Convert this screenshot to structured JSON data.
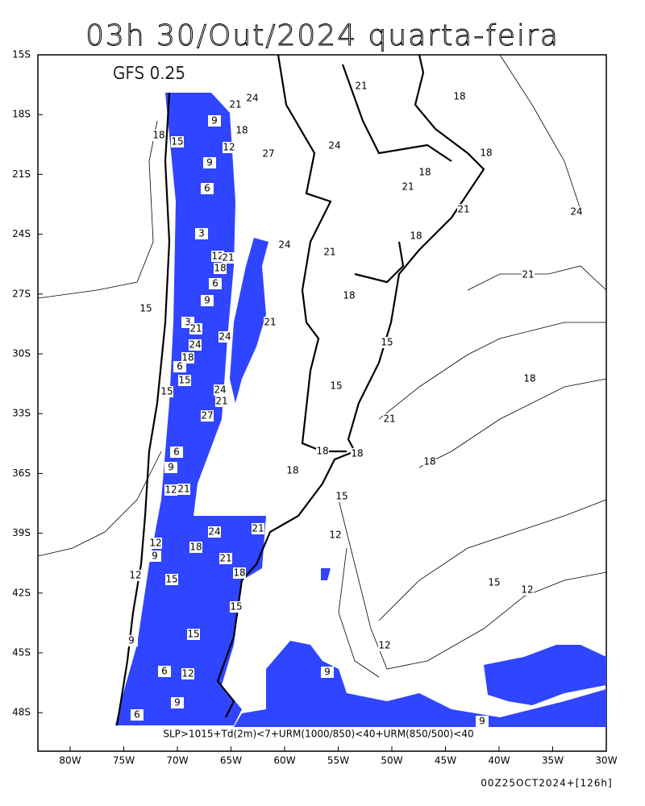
{
  "header": {
    "title": "03h 30/Out/2024 quarta-feira",
    "model": "GFS 0.25"
  },
  "axes": {
    "lat_labels": [
      "15S",
      "18S",
      "21S",
      "24S",
      "27S",
      "30S",
      "33S",
      "36S",
      "39S",
      "42S",
      "45S",
      "48S"
    ],
    "lon_labels": [
      "80W",
      "75W",
      "70W",
      "65W",
      "60W",
      "55W",
      "50W",
      "45W",
      "40W",
      "35W",
      "30W"
    ]
  },
  "contour_labels": [
    "21",
    "18",
    "24",
    "21",
    "18",
    "15",
    "9",
    "18",
    "12",
    "27",
    "24",
    "18",
    "9",
    "18",
    "6",
    "21",
    "21",
    "24",
    "3",
    "18",
    "24",
    "21",
    "12",
    "21",
    "18",
    "6",
    "21",
    "18",
    "9",
    "15",
    "3",
    "21",
    "21",
    "24",
    "24",
    "15",
    "18",
    "6",
    "15",
    "18",
    "15",
    "15",
    "24",
    "21",
    "27",
    "21",
    "6",
    "18",
    "18",
    "18",
    "9",
    "18",
    "12",
    "21",
    "15",
    "21",
    "24",
    "12",
    "12",
    "18",
    "9",
    "21",
    "18",
    "12",
    "15",
    "15",
    "12",
    "15",
    "15",
    "9",
    "12",
    "9",
    "6",
    "12",
    "9",
    "6",
    "9"
  ],
  "caption": "SLP>1015+Td(2m)<7+URM(1000/850)<40+URM(850/500)<40",
  "footer": "00Z25OCT2024+[126h]"
}
